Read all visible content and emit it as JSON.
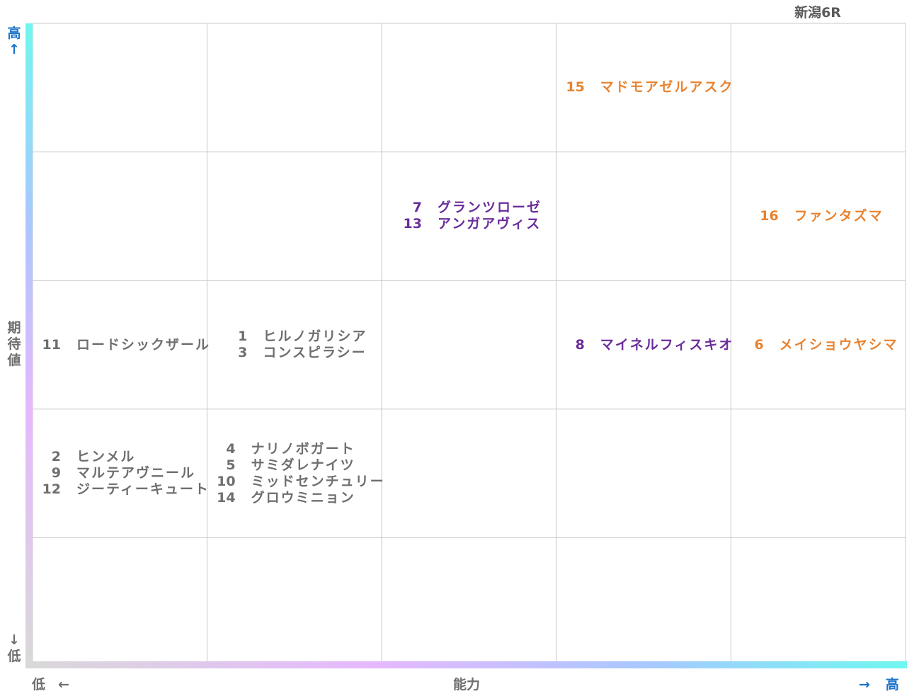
{
  "race_title": "新潟6R",
  "y_axis": {
    "label": "期待値",
    "high": "高",
    "low": "低",
    "up_arrow": "↑",
    "down_arrow": "↓"
  },
  "x_axis": {
    "label": "能力",
    "high": "高",
    "low": "低",
    "left_arrow": "←",
    "right_arrow": "→"
  },
  "colors": {
    "gray": "#6e6e6e",
    "purple": "#6a2d9a",
    "orange": "#e8832f",
    "grid_line": "#c8c8c8",
    "axis_accent": "#1a73c8",
    "gradient": [
      "#d9d9d9",
      "#e6b8ff",
      "#a9c8ff",
      "#6ff7f0"
    ]
  },
  "chart_data": {
    "type": "table",
    "columns": 5,
    "rows": 5,
    "cells": [
      {
        "row": 4,
        "col": 3,
        "color": "orange",
        "entries": [
          {
            "num": "15",
            "name": "マドモアゼルアスク"
          }
        ]
      },
      {
        "row": 3,
        "col": 2,
        "color": "purple",
        "entries": [
          {
            "num": "7",
            "name": "グランツローゼ"
          },
          {
            "num": "13",
            "name": "アンガアヴィス"
          }
        ]
      },
      {
        "row": 3,
        "col": 4,
        "color": "orange",
        "entries": [
          {
            "num": "16",
            "name": "ファンタズマ"
          }
        ]
      },
      {
        "row": 2,
        "col": 0,
        "color": "gray",
        "entries": [
          {
            "num": "11",
            "name": "ロードシックザール"
          }
        ]
      },
      {
        "row": 2,
        "col": 1,
        "color": "gray",
        "entries": [
          {
            "num": "1",
            "name": "ヒルノガリシア"
          },
          {
            "num": "3",
            "name": "コンスピラシー"
          }
        ]
      },
      {
        "row": 2,
        "col": 3,
        "color": "purple",
        "entries": [
          {
            "num": "8",
            "name": "マイネルフィスキオ"
          }
        ]
      },
      {
        "row": 2,
        "col": 4,
        "color": "orange",
        "entries": [
          {
            "num": "6",
            "name": "メイショウヤシマ"
          }
        ]
      },
      {
        "row": 1,
        "col": 0,
        "color": "gray",
        "entries": [
          {
            "num": "2",
            "name": "ヒンメル"
          },
          {
            "num": "9",
            "name": "マルテアヴニール"
          },
          {
            "num": "12",
            "name": "ジーティーキュート"
          }
        ]
      },
      {
        "row": 1,
        "col": 1,
        "color": "gray",
        "entries": [
          {
            "num": "4",
            "name": "ナリノボガート"
          },
          {
            "num": "5",
            "name": "サミダレナイツ"
          },
          {
            "num": "10",
            "name": "ミッドセンチュリー"
          },
          {
            "num": "14",
            "name": "グロウミニョン"
          }
        ]
      }
    ]
  }
}
